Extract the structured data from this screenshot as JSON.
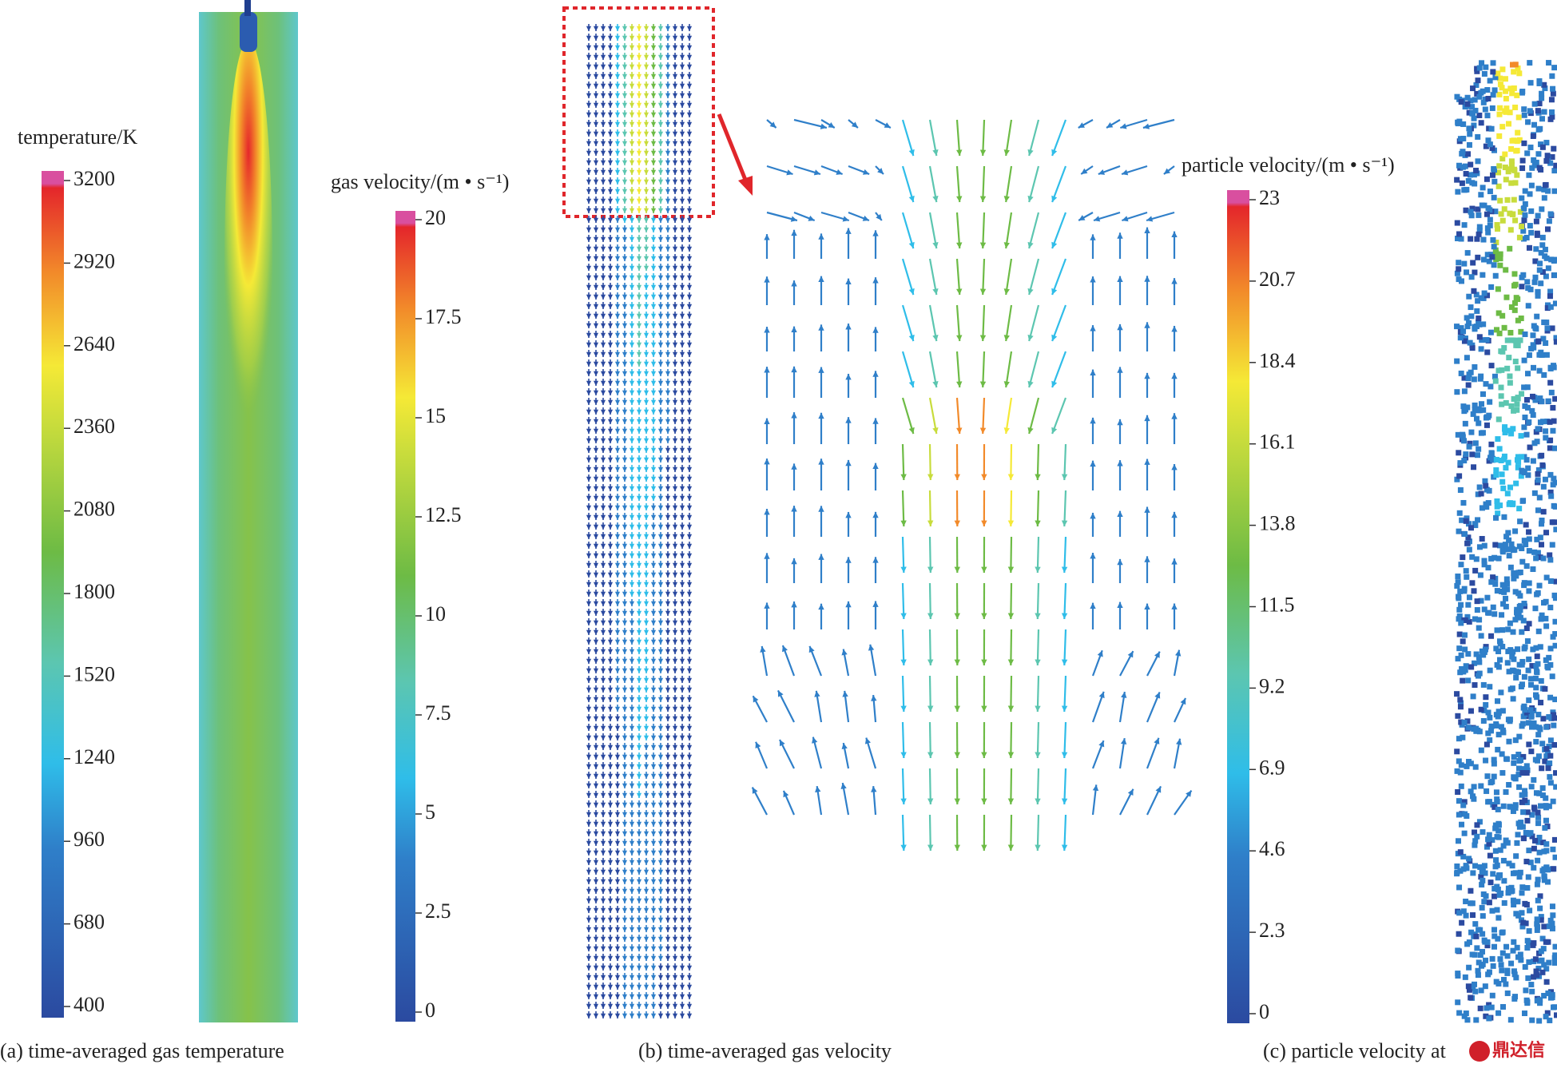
{
  "panels": [
    {
      "caption": "(a) time-averaged gas temperature",
      "colorbar": {
        "title": "temperature/K",
        "lim": [
          400,
          3200
        ],
        "ticks": [
          400,
          680,
          960,
          1240,
          1520,
          1800,
          2080,
          2360,
          2640,
          2920,
          3200
        ]
      }
    },
    {
      "caption": "(b) time-averaged gas velocity",
      "colorbar": {
        "title": "gas velocity/(m • s⁻¹)",
        "lim": [
          0,
          20
        ],
        "ticks": [
          0,
          2.5,
          5,
          7.5,
          10,
          12.5,
          15,
          17.5,
          20
        ]
      }
    },
    {
      "caption": "(c)  particle velocity at",
      "colorbar": {
        "title": "particle velocity/(m • s⁻¹)",
        "lim": [
          0,
          23
        ],
        "ticks": [
          0,
          2.3,
          4.6,
          6.9,
          9.2,
          11.5,
          13.8,
          16.1,
          18.4,
          20.7,
          23
        ]
      }
    }
  ],
  "watermark": "鼎达信"
}
